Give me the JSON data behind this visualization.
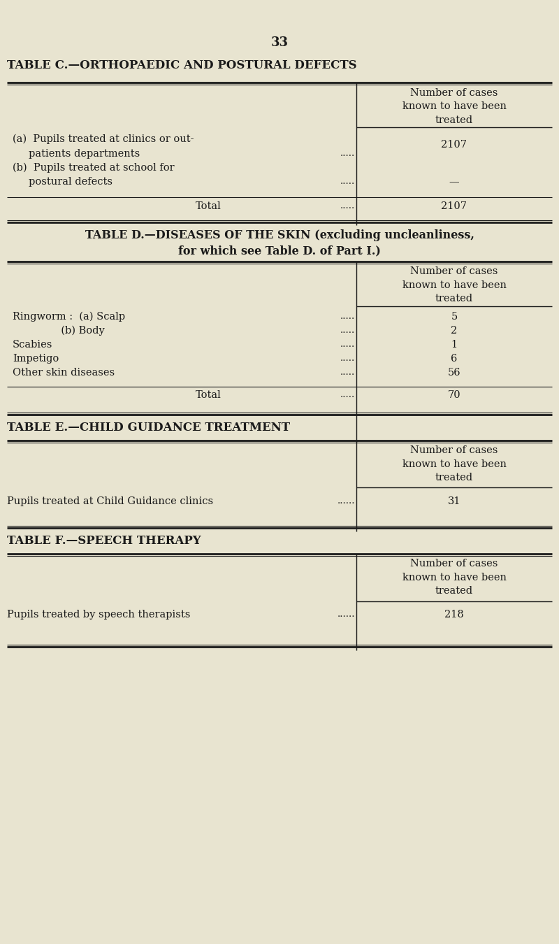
{
  "bg_color": "#e8e4d0",
  "text_color": "#1a1a1a",
  "page_number": "33",
  "col_header": "Number of cases\nknown to have been\ntreated",
  "table_c_title": "TABLE C.—ORTHOPAEDIC AND POSTURAL DEFECTS",
  "table_d_title1": "TABLE D.—DISEASES OF THE SKIN (excluding uncleanliness,",
  "table_d_title2": "for which see Table D. of Part I.)",
  "table_e_title": "TABLE E.—CHILD GUIDANCE TREATMENT",
  "table_f_title": "TABLE F.—SPEECH THERAPY"
}
